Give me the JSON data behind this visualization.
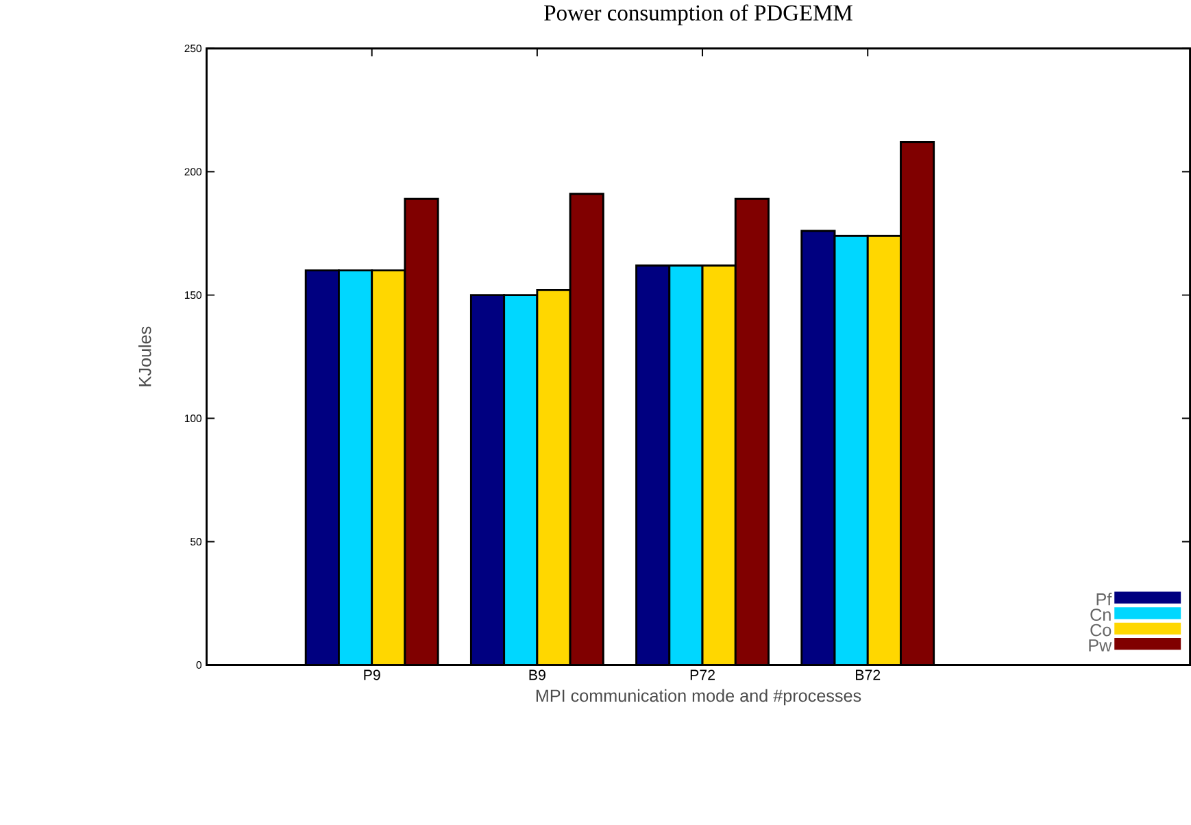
{
  "chart_data": {
    "type": "bar",
    "title": "Power consumption of PDGEMM",
    "xlabel": "MPI communication mode and #processes",
    "ylabel": "KJoules",
    "categories": [
      "P9",
      "B9",
      "P72",
      "B72"
    ],
    "series": [
      {
        "name": "Pf",
        "color": "#000080",
        "values": [
          160,
          150,
          162,
          176
        ]
      },
      {
        "name": "Cn",
        "color": "#00d7ff",
        "values": [
          160,
          150,
          162,
          174
        ]
      },
      {
        "name": "Co",
        "color": "#ffd700",
        "values": [
          160,
          152,
          162,
          174
        ]
      },
      {
        "name": "Pw",
        "color": "#800000",
        "values": [
          189,
          191,
          189,
          212
        ]
      }
    ],
    "ylim": [
      0,
      250
    ],
    "yticks": [
      0,
      50,
      100,
      150,
      200,
      250
    ],
    "grid": false,
    "legend": "bottom right"
  }
}
